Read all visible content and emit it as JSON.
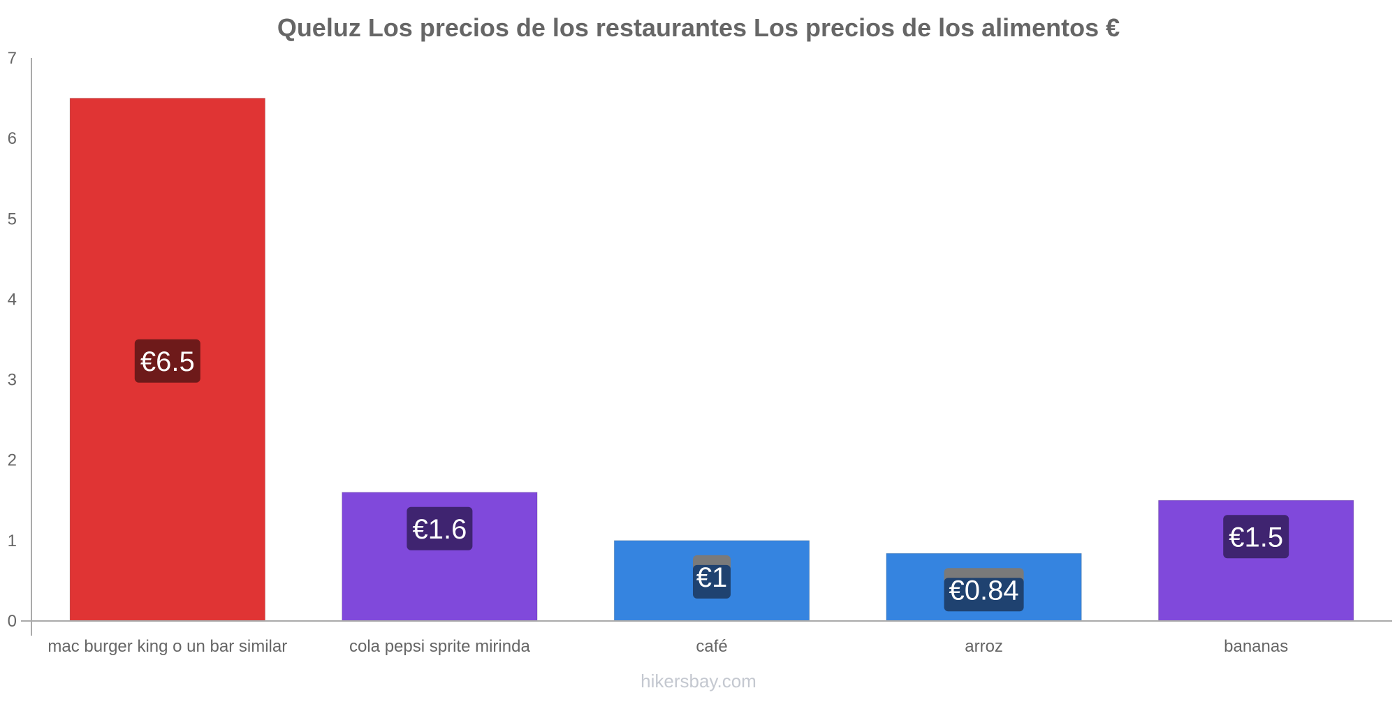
{
  "chart_data": {
    "type": "bar",
    "title": "Queluz Los precios de los restaurantes Los precios de los alimentos €",
    "categories": [
      "mac burger king o un bar similar",
      "cola pepsi sprite mirinda",
      "café",
      "arroz",
      "bananas"
    ],
    "values": [
      6.5,
      1.6,
      1.0,
      0.84,
      1.5
    ],
    "value_labels": [
      "€6.5",
      "€1.6",
      "€1",
      "€0.84",
      "€1.5"
    ],
    "bar_colors": [
      "#e03434",
      "#8049db",
      "#3584e0",
      "#3584e0",
      "#8049db"
    ],
    "label_box_colors": [
      "#6e1a1a",
      "#3f2470",
      "#1f4270",
      "#1f4270",
      "#3f2470"
    ],
    "label_box_overlay": [
      "",
      "",
      "#7a7a7a",
      "#7a7a7a",
      ""
    ],
    "ylim": [
      0,
      7
    ],
    "yticks": [
      "0",
      "1",
      "2",
      "3",
      "4",
      "5",
      "6",
      "7"
    ],
    "xlabel": "",
    "ylabel": "",
    "grid": false,
    "legend": "none"
  },
  "footer": "hikersbay.com"
}
